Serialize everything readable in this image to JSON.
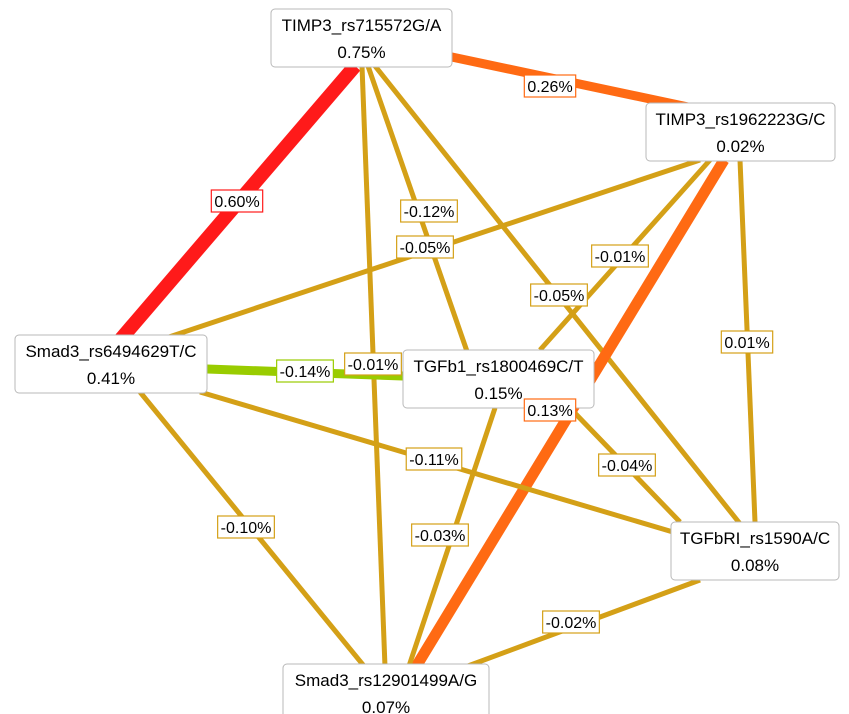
{
  "colors": {
    "strong_positive": "#ff1a1a",
    "moderate_positive": "#ff6a13",
    "weak": "#d4a017",
    "negative": "#99cc00"
  },
  "nodes": [
    {
      "id": "timp3_715572",
      "name": "TIMP3_rs715572G/A",
      "value": "0.75%"
    },
    {
      "id": "timp3_1962223",
      "name": "TIMP3_rs1962223G/C",
      "value": "0.02%"
    },
    {
      "id": "smad3_6494629",
      "name": "Smad3_rs6494629T/C",
      "value": "0.41%"
    },
    {
      "id": "tgfb1_1800469",
      "name": "TGFb1_rs1800469C/T",
      "value": "0.15%"
    },
    {
      "id": "tgfbri_1590",
      "name": "TGFbRI_rs1590A/C",
      "value": "0.08%"
    },
    {
      "id": "smad3_12901499",
      "name": "Smad3_rs12901499A/G",
      "value": "0.07%"
    }
  ],
  "edges": [
    {
      "source": "timp3_715572",
      "target": "timp3_1962223",
      "label": "0.26%",
      "color": "moderate_positive"
    },
    {
      "source": "timp3_715572",
      "target": "smad3_6494629",
      "label": "0.60%",
      "color": "strong_positive"
    },
    {
      "source": "timp3_715572",
      "target": "tgfb1_1800469",
      "label": "-0.12%",
      "color": "weak"
    },
    {
      "source": "timp3_715572",
      "target": "tgfbri_1590",
      "label": "-0.05%",
      "color": "weak"
    },
    {
      "source": "timp3_715572",
      "target": "smad3_12901499",
      "label": "-0.01%",
      "color": "weak"
    },
    {
      "source": "timp3_1962223",
      "target": "smad3_6494629",
      "label": "-0.05%",
      "color": "weak"
    },
    {
      "source": "timp3_1962223",
      "target": "tgfb1_1800469",
      "label": "-0.01%",
      "color": "weak"
    },
    {
      "source": "timp3_1962223",
      "target": "smad3_12901499",
      "label": "0.13%",
      "color": "moderate_positive"
    },
    {
      "source": "timp3_1962223",
      "target": "tgfbri_1590",
      "label": "0.01%",
      "color": "weak"
    },
    {
      "source": "smad3_6494629",
      "target": "tgfb1_1800469",
      "label": "-0.14%",
      "color": "negative"
    },
    {
      "source": "smad3_6494629",
      "target": "tgfbri_1590",
      "label": "-0.11%",
      "color": "weak"
    },
    {
      "source": "smad3_6494629",
      "target": "smad3_12901499",
      "label": "-0.10%",
      "color": "weak"
    },
    {
      "source": "tgfb1_1800469",
      "target": "tgfbri_1590",
      "label": "-0.04%",
      "color": "weak"
    },
    {
      "source": "tgfb1_1800469",
      "target": "smad3_12901499",
      "label": "-0.03%",
      "color": "weak"
    },
    {
      "source": "tgfbri_1590",
      "target": "smad3_12901499",
      "label": "-0.02%",
      "color": "weak"
    }
  ]
}
